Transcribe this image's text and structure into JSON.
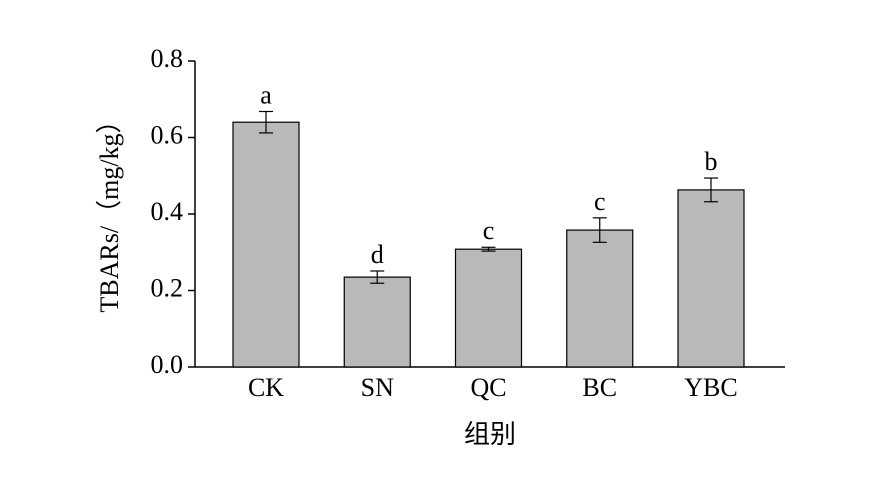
{
  "chart_data": {
    "type": "bar",
    "categories": [
      "CK",
      "SN",
      "QC",
      "BC",
      "YBC"
    ],
    "values": [
      0.64,
      0.235,
      0.308,
      0.358,
      0.463
    ],
    "errors": [
      0.028,
      0.016,
      0.005,
      0.032,
      0.031
    ],
    "significance": [
      "a",
      "d",
      "c",
      "c",
      "b"
    ],
    "color": "#b9b9b9",
    "x_label": "组别",
    "y_label": "TBARs/（mg/kg）",
    "ylim": [
      0,
      0.8
    ],
    "yticks": [
      {
        "value": 0,
        "label": "0.0"
      },
      {
        "value": 0.2,
        "label": "0.2"
      },
      {
        "value": 0.4,
        "label": "0.4"
      },
      {
        "value": 0.6,
        "label": "0.6"
      },
      {
        "value": 0.8,
        "label": "0.8"
      }
    ],
    "grid": false
  }
}
